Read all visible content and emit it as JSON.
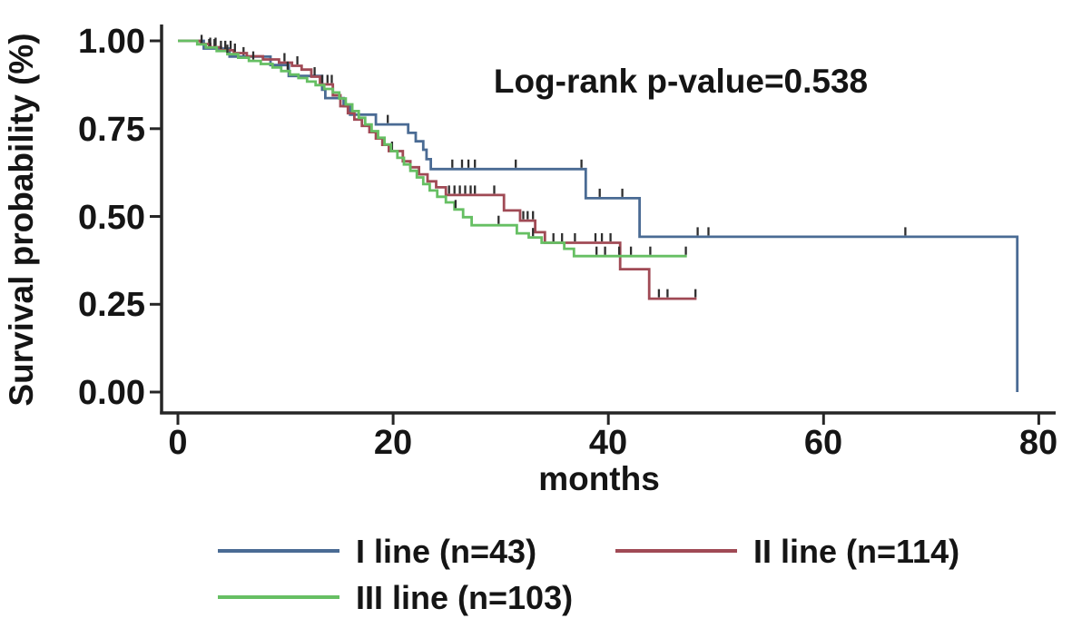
{
  "chart_data": {
    "type": "line",
    "subtype": "kaplan-meier-step",
    "title": "",
    "annotation": "Log-rank p-value=0.538",
    "xlabel": "months",
    "ylabel": "Survival probability (%)",
    "xlim": [
      0,
      80
    ],
    "ylim": [
      0.0,
      1.0
    ],
    "grid": false,
    "legend_position": "bottom",
    "x_ticks": [
      0,
      20,
      40,
      60,
      80
    ],
    "x_tick_labels": [
      "0",
      "20",
      "40",
      "60",
      "80"
    ],
    "y_ticks": [
      1.0,
      0.75,
      0.5,
      0.25,
      0.0
    ],
    "y_tick_labels": [
      "1.00",
      "0.75",
      "0.50",
      "0.25",
      "0.00"
    ],
    "axis_color": "#262626",
    "censor_tick_color": "#2e2e2e",
    "series": [
      {
        "name": "I line",
        "label": "I line (n=43)",
        "n": 43,
        "color": "#4a6b94",
        "steps": [
          [
            0,
            1.0
          ],
          [
            2.4,
            0.978
          ],
          [
            4.8,
            0.955
          ],
          [
            8.6,
            0.931
          ],
          [
            10.3,
            0.9
          ],
          [
            13.4,
            0.861
          ],
          [
            13.7,
            0.837
          ],
          [
            15.4,
            0.814
          ],
          [
            16.0,
            0.79
          ],
          [
            18.4,
            0.762
          ],
          [
            21.4,
            0.738
          ],
          [
            22.1,
            0.714
          ],
          [
            22.8,
            0.69
          ],
          [
            23.1,
            0.663
          ],
          [
            23.5,
            0.635
          ],
          [
            37.9,
            0.552
          ],
          [
            42.9,
            0.442
          ],
          [
            78.0,
            0.0
          ]
        ],
        "end_month": null,
        "censor_months": [
          2.9,
          3.4,
          6.1,
          19.5,
          25.5,
          26.4,
          27.0,
          27.6,
          31.4,
          37.5,
          39.2,
          41.3,
          48.3,
          49.3,
          67.6
        ]
      },
      {
        "name": "II line",
        "label": "II line (n=114)",
        "n": 114,
        "color": "#a04a55",
        "steps": [
          [
            0,
            1.0
          ],
          [
            2.1,
            0.991
          ],
          [
            3.0,
            0.982
          ],
          [
            4.0,
            0.973
          ],
          [
            5.2,
            0.965
          ],
          [
            6.4,
            0.956
          ],
          [
            7.9,
            0.947
          ],
          [
            9.4,
            0.938
          ],
          [
            10.6,
            0.929
          ],
          [
            11.5,
            0.918
          ],
          [
            12.4,
            0.898
          ],
          [
            13.2,
            0.876
          ],
          [
            14.4,
            0.845
          ],
          [
            15.1,
            0.814
          ],
          [
            15.8,
            0.794
          ],
          [
            16.4,
            0.776
          ],
          [
            17.1,
            0.758
          ],
          [
            17.8,
            0.74
          ],
          [
            18.4,
            0.722
          ],
          [
            19.0,
            0.704
          ],
          [
            19.6,
            0.686
          ],
          [
            20.9,
            0.657
          ],
          [
            21.6,
            0.64
          ],
          [
            22.4,
            0.62
          ],
          [
            23.2,
            0.6
          ],
          [
            24.0,
            0.583
          ],
          [
            24.9,
            0.561
          ],
          [
            30.3,
            0.517
          ],
          [
            31.8,
            0.488
          ],
          [
            33.2,
            0.455
          ],
          [
            34.1,
            0.425
          ],
          [
            41.1,
            0.35
          ],
          [
            43.8,
            0.266
          ]
        ],
        "end_month": 48.2,
        "censor_months": [
          3.0,
          3.5,
          4.0,
          4.4,
          4.9,
          5.3,
          9.9,
          11.1,
          12.7,
          13.4,
          13.9,
          14.3,
          19.9,
          25.2,
          25.7,
          26.2,
          26.7,
          27.2,
          27.6,
          29.4,
          32.1,
          32.5,
          33.0,
          36.9,
          38.8,
          39.4,
          40.2,
          44.7,
          45.5,
          48.1
        ]
      },
      {
        "name": "III line",
        "label": "III line (n=103)",
        "n": 103,
        "color": "#66bf63",
        "steps": [
          [
            0,
            1.0
          ],
          [
            1.8,
            0.99
          ],
          [
            2.6,
            0.981
          ],
          [
            3.6,
            0.971
          ],
          [
            4.6,
            0.962
          ],
          [
            5.6,
            0.952
          ],
          [
            6.6,
            0.943
          ],
          [
            7.7,
            0.934
          ],
          [
            8.8,
            0.924
          ],
          [
            9.6,
            0.914
          ],
          [
            10.4,
            0.904
          ],
          [
            11.2,
            0.894
          ],
          [
            12.0,
            0.884
          ],
          [
            12.8,
            0.874
          ],
          [
            13.6,
            0.863
          ],
          [
            14.4,
            0.853
          ],
          [
            15.0,
            0.836
          ],
          [
            15.6,
            0.819
          ],
          [
            16.2,
            0.8
          ],
          [
            16.8,
            0.781
          ],
          [
            17.4,
            0.762
          ],
          [
            18.0,
            0.743
          ],
          [
            18.6,
            0.724
          ],
          [
            19.2,
            0.705
          ],
          [
            19.8,
            0.686
          ],
          [
            20.4,
            0.667
          ],
          [
            21.0,
            0.648
          ],
          [
            21.6,
            0.63
          ],
          [
            22.2,
            0.611
          ],
          [
            22.8,
            0.592
          ],
          [
            23.4,
            0.574
          ],
          [
            24.1,
            0.556
          ],
          [
            24.9,
            0.54
          ],
          [
            25.7,
            0.52
          ],
          [
            26.5,
            0.498
          ],
          [
            27.3,
            0.475
          ],
          [
            31.5,
            0.452
          ],
          [
            32.6,
            0.44
          ],
          [
            33.8,
            0.425
          ],
          [
            35.9,
            0.408
          ],
          [
            36.8,
            0.387
          ]
        ],
        "end_month": 47.3,
        "censor_months": [
          2.2,
          4.6,
          7.0,
          10.2,
          25.8,
          29.8,
          33.0,
          34.9,
          35.7,
          38.9,
          39.7,
          41.0,
          42.1,
          43.9,
          47.2
        ]
      }
    ]
  }
}
